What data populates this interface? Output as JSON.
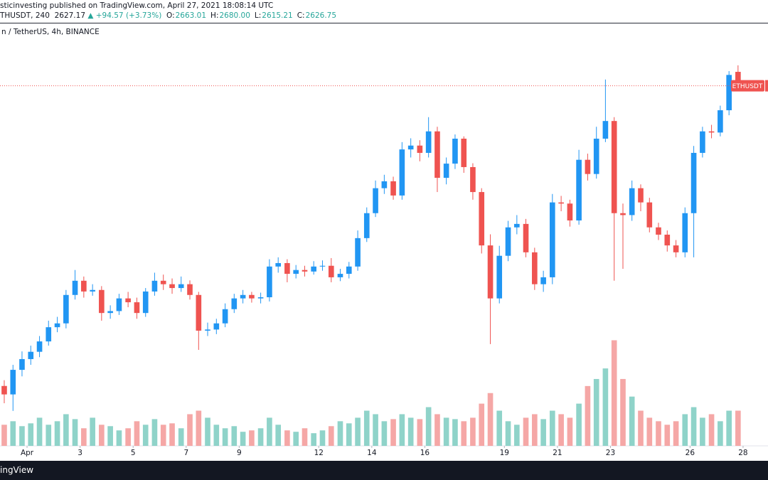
{
  "header": {
    "line1": "sticinvesting published on TradingView.com, April 27, 2021 18:08:14 UTC",
    "symbol": "THUSDT, 240",
    "price": "2627.17",
    "change": "▲ +94.57 (+3.73%)",
    "ohlc": [
      "O:",
      "2663.01",
      "H:",
      "2680.00",
      "L:",
      "2615.21",
      "C:",
      "2626.75"
    ]
  },
  "footer": "ingView",
  "chart_data": {
    "type": "candlestick",
    "title": "n / TetherUS, 4h, BINANCE",
    "up_color": "#2196f3",
    "down_color": "#ef5350",
    "volume_up_color": "#8fd3c9",
    "volume_down_color": "#f5a7a6",
    "last_price": 2626.75,
    "last_price_label": "ETHUSDT",
    "xlim": [
      -0.02,
      28.94
    ],
    "ylim": [
      1689,
      2789
    ],
    "y2lim": [
      0,
      300
    ],
    "xticks": [
      {
        "value": 1,
        "label": "Apr"
      },
      3,
      5,
      7,
      9,
      12,
      14,
      16,
      19,
      21,
      23,
      26,
      28
    ],
    "x": [
      0.14,
      0.47,
      0.81,
      1.14,
      1.47,
      1.81,
      2.14,
      2.47,
      2.81,
      3.14,
      3.47,
      3.81,
      4.14,
      4.47,
      4.81,
      5.14,
      5.47,
      5.81,
      6.14,
      6.47,
      6.81,
      7.14,
      7.47,
      7.81,
      8.14,
      8.47,
      8.81,
      9.14,
      9.47,
      9.81,
      10.14,
      10.47,
      10.81,
      11.14,
      11.47,
      11.81,
      12.14,
      12.47,
      12.81,
      13.14,
      13.47,
      13.81,
      14.14,
      14.47,
      14.81,
      15.14,
      15.47,
      15.81,
      16.14,
      16.47,
      16.81,
      17.14,
      17.47,
      17.81,
      18.14,
      18.47,
      18.81,
      19.14,
      19.47,
      19.81,
      20.14,
      20.47,
      20.81,
      21.14,
      21.47,
      21.81,
      22.14,
      22.47,
      22.81,
      23.14,
      23.47,
      23.81,
      24.14,
      24.47,
      24.81,
      25.14,
      25.47,
      25.81,
      26.14,
      26.47,
      26.81,
      27.14,
      27.47,
      27.81
    ],
    "open": [
      1845,
      1823,
      1887,
      1915,
      1934,
      1961,
      1998,
      2008,
      2082,
      2119,
      2091,
      2095,
      2035,
      2040,
      2073,
      2063,
      2035,
      2091,
      2119,
      2110,
      2100,
      2110,
      2082,
      1989,
      1992,
      2008,
      2045,
      2073,
      2082,
      2073,
      2076,
      2156,
      2165,
      2137,
      2147,
      2143,
      2156,
      2158,
      2128,
      2137,
      2156,
      2230,
      2295,
      2360,
      2378,
      2341,
      2461,
      2471,
      2452,
      2508,
      2387,
      2424,
      2489,
      2415,
      2350,
      2211,
      2073,
      2184,
      2258,
      2267,
      2193,
      2110,
      2128,
      2323,
      2320,
      2276,
      2434,
      2397,
      2489,
      2535,
      2295,
      2290,
      2360,
      2323,
      2258,
      2239,
      2211,
      2193,
      2295,
      2452,
      2508,
      2505,
      2563,
      2663.01
    ],
    "high": [
      1860,
      1900,
      1935,
      1950,
      1975,
      2015,
      2025,
      2095,
      2147,
      2130,
      2110,
      2105,
      2055,
      2085,
      2090,
      2075,
      2100,
      2140,
      2135,
      2125,
      2130,
      2120,
      2090,
      2010,
      2020,
      2060,
      2085,
      2095,
      2090,
      2088,
      2175,
      2180,
      2175,
      2160,
      2158,
      2170,
      2172,
      2178,
      2150,
      2168,
      2250,
      2310,
      2380,
      2395,
      2390,
      2480,
      2490,
      2485,
      2545,
      2520,
      2440,
      2500,
      2495,
      2425,
      2360,
      2240,
      2210,
      2275,
      2290,
      2280,
      2205,
      2145,
      2345,
      2340,
      2330,
      2460,
      2450,
      2520,
      2643,
      2545,
      2320,
      2380,
      2370,
      2335,
      2270,
      2250,
      2225,
      2310,
      2470,
      2520,
      2525,
      2575,
      2665,
      2680
    ],
    "low": [
      1800,
      1780,
      1870,
      1900,
      1920,
      1950,
      1985,
      1995,
      2070,
      2075,
      2080,
      2015,
      2020,
      2030,
      2050,
      2020,
      2025,
      2080,
      2095,
      2085,
      2090,
      2070,
      1939,
      1975,
      1980,
      1998,
      2035,
      2060,
      2062,
      2060,
      2065,
      2140,
      2115,
      2125,
      2130,
      2135,
      2145,
      2115,
      2118,
      2125,
      2145,
      2220,
      2285,
      2345,
      2330,
      2330,
      2440,
      2430,
      2440,
      2350,
      2370,
      2410,
      2400,
      2330,
      2190,
      1954,
      2060,
      2170,
      2240,
      2180,
      2095,
      2090,
      2110,
      2300,
      2260,
      2265,
      2380,
      2385,
      2480,
      2119,
      2150,
      2275,
      2300,
      2245,
      2225,
      2195,
      2180,
      2180,
      2180,
      2440,
      2490,
      2495,
      2550,
      2615.21
    ],
    "close": [
      1823,
      1887,
      1915,
      1934,
      1961,
      1998,
      2008,
      2082,
      2119,
      2091,
      2095,
      2035,
      2040,
      2073,
      2063,
      2035,
      2091,
      2119,
      2110,
      2100,
      2110,
      2082,
      1989,
      1992,
      2008,
      2045,
      2073,
      2082,
      2073,
      2076,
      2156,
      2165,
      2137,
      2147,
      2143,
      2156,
      2158,
      2128,
      2137,
      2156,
      2230,
      2295,
      2360,
      2378,
      2341,
      2461,
      2471,
      2452,
      2508,
      2387,
      2424,
      2489,
      2415,
      2350,
      2211,
      2073,
      2184,
      2258,
      2267,
      2193,
      2110,
      2128,
      2323,
      2320,
      2276,
      2434,
      2397,
      2489,
      2535,
      2295,
      2290,
      2360,
      2323,
      2258,
      2239,
      2211,
      2193,
      2295,
      2452,
      2508,
      2505,
      2563,
      2655,
      2626.75
    ],
    "volume": [
      30,
      35,
      28,
      32,
      40,
      30,
      35,
      45,
      38,
      25,
      40,
      30,
      28,
      22,
      25,
      35,
      30,
      38,
      30,
      32,
      25,
      45,
      50,
      40,
      30,
      25,
      28,
      20,
      22,
      25,
      40,
      30,
      22,
      20,
      25,
      18,
      22,
      28,
      35,
      32,
      40,
      50,
      45,
      35,
      38,
      45,
      40,
      38,
      55,
      45,
      40,
      38,
      35,
      40,
      60,
      75,
      50,
      35,
      30,
      40,
      45,
      38,
      50,
      45,
      40,
      60,
      85,
      95,
      110,
      150,
      95,
      70,
      50,
      40,
      35,
      30,
      35,
      45,
      55,
      40,
      45,
      35,
      50,
      50
    ]
  }
}
